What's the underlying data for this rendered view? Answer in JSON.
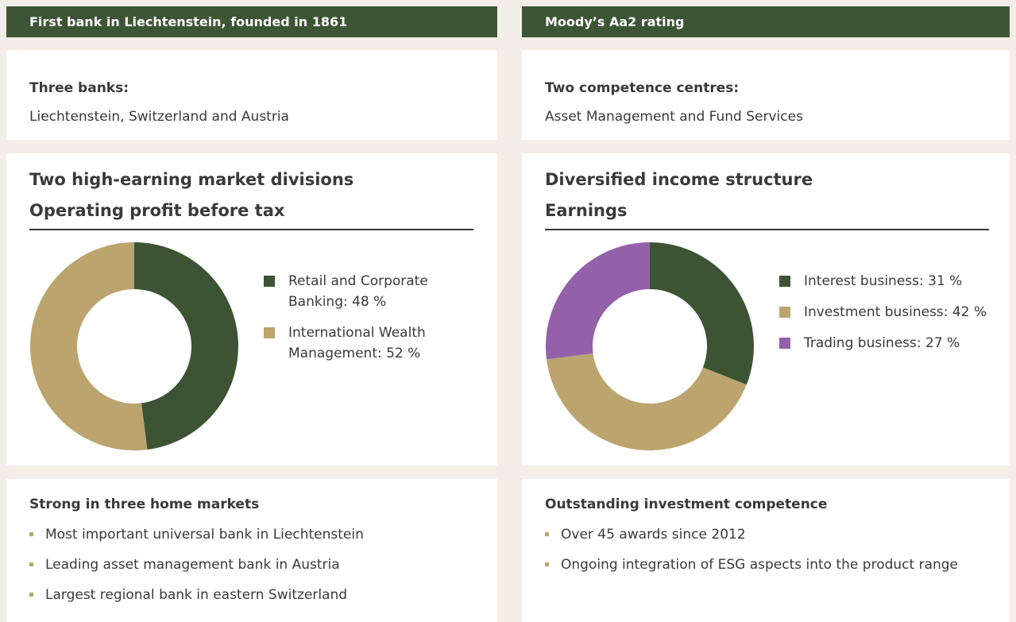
{
  "left": {
    "header": "First bank in Liechtenstein, founded in 1861",
    "box1": {
      "title": "Three banks:",
      "text": "Liechtenstein, Switzerland and Austria"
    },
    "box3": {
      "title": "Strong in three home markets",
      "items": [
        "Most important universal bank in Liechtenstein",
        "Leading asset management bank in Austria",
        "Largest regional bank in eastern Switzerland"
      ]
    }
  },
  "right": {
    "header": "Moody’s Aa2 rating",
    "box1": {
      "title": "Two competence centres:",
      "text": "Asset Management and Fund Services"
    },
    "box3": {
      "title": "Outstanding investment competence",
      "items": [
        "Over 45 awards since 2012",
        "Ongoing integration of ESG aspects into the product range"
      ]
    }
  },
  "chart_data": [
    {
      "type": "pie",
      "title": "Two high-earning market divisions",
      "subtitle": "Operating profit before tax",
      "categories": [
        "Retail and Corporate Banking: 48 %",
        "International Wealth Management: 52 %"
      ],
      "values": [
        48,
        52
      ],
      "colors": [
        "#3c5434",
        "#bba46d"
      ]
    },
    {
      "type": "pie",
      "title": "Diversified income structure",
      "subtitle": "Earnings",
      "categories": [
        "Interest business: 31 %",
        "Investment business: 42 %",
        "Trading business: 27 %"
      ],
      "values": [
        31,
        42,
        27
      ],
      "colors": [
        "#3c5434",
        "#bba46d",
        "#9560aa"
      ]
    }
  ]
}
